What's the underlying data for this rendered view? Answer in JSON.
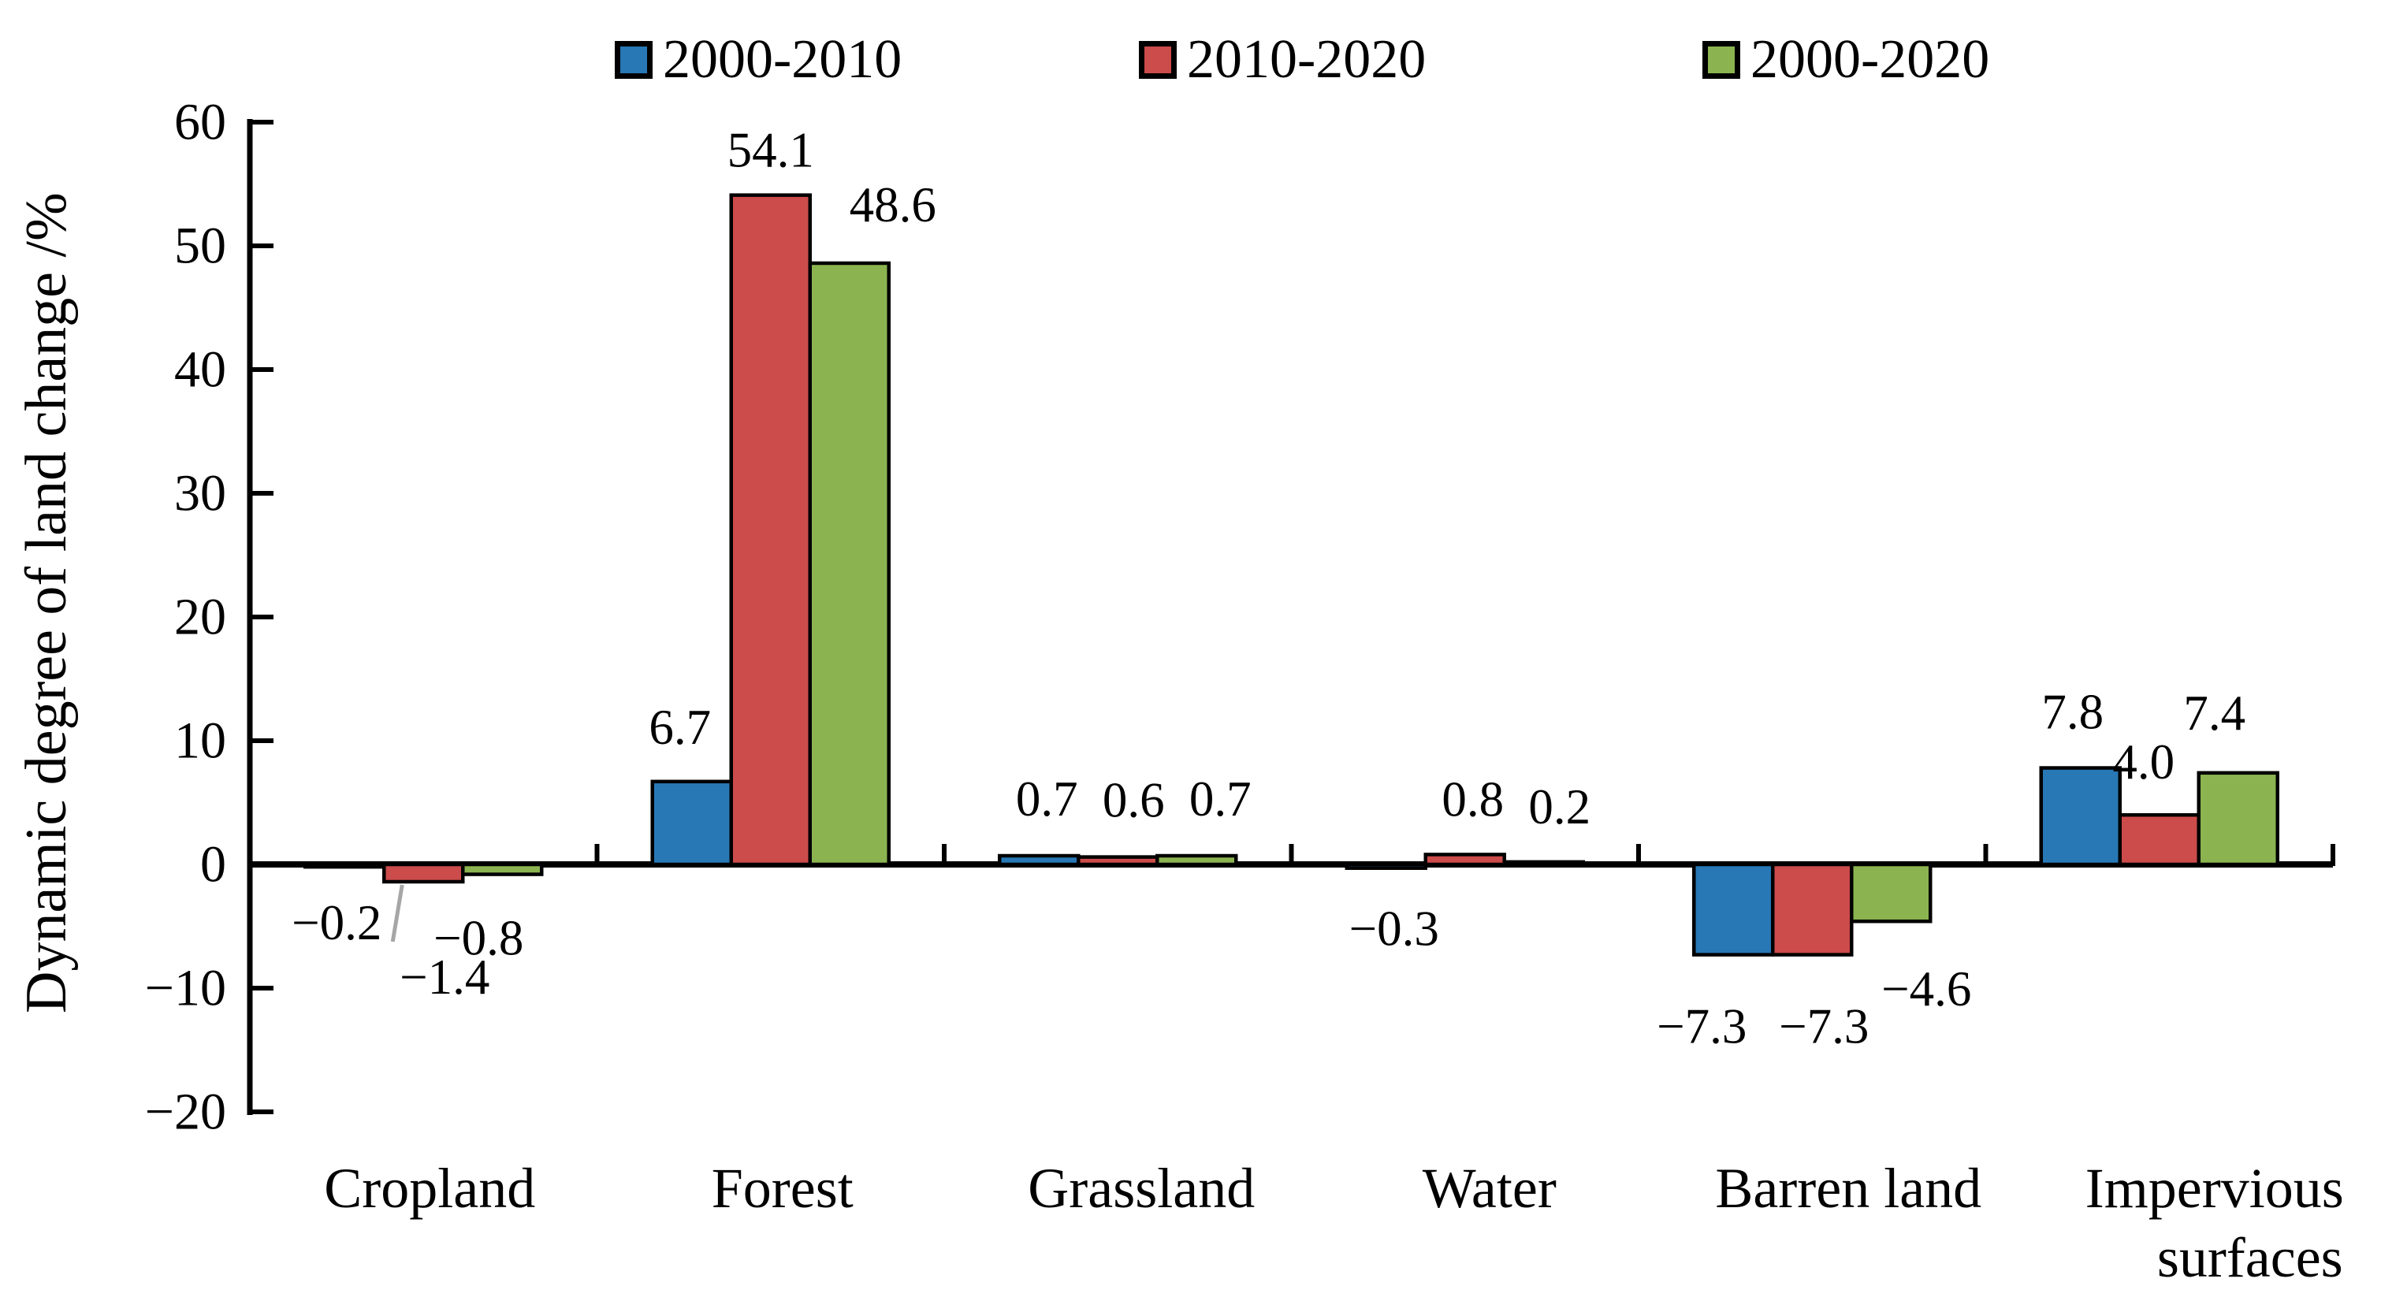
{
  "chart": {
    "ylabel": "Dynamic degree of land change /%",
    "background": "#ffffff",
    "axis_color": "#000000",
    "bar_outline_color": "#000000",
    "value_label_color": "#000000",
    "leader_line_color": "#a6a6a6"
  },
  "legend": {
    "items": [
      {
        "label": "2000-2010",
        "color": "#2878B5"
      },
      {
        "label": "2010-2020",
        "color": "#CC4B4B"
      },
      {
        "label": "2000-2020",
        "color": "#8BB450"
      }
    ]
  },
  "chart_data": {
    "type": "bar",
    "title": "",
    "xlabel": "",
    "ylabel": "Dynamic degree of land change /%",
    "ylim": [
      -20,
      60
    ],
    "ytick_step": 10,
    "grid": false,
    "legend_position": "top",
    "categories": [
      "Cropland",
      "Forest",
      "Grassland",
      "Water",
      "Barren land",
      "Impervious surfaces"
    ],
    "category_display": [
      {
        "lines": [
          "Cropland"
        ],
        "dx": 8
      },
      {
        "lines": [
          "Forest"
        ],
        "dx": 15
      },
      {
        "lines": [
          "Grassland"
        ],
        "dx": 30
      },
      {
        "lines": [
          "Water"
        ],
        "dx": 31
      },
      {
        "lines": [
          "Barren land"
        ],
        "dx": 46
      },
      {
        "lines": [
          "Impervious",
          "surfaces"
        ],
        "dx": 70
      }
    ],
    "series": [
      {
        "name": "2000-2010",
        "color": "#2878B5",
        "values": [
          -0.2,
          6.7,
          0.7,
          -0.3,
          -7.3,
          7.8
        ],
        "label_offsets": [
          {
            "dx": -10,
            "dy": 30
          },
          {
            "dx": -15,
            "dy": -20
          },
          {
            "dx": 10,
            "dy": -23
          },
          {
            "dx": 10,
            "dy": 36
          },
          {
            "dx": -40,
            "dy": 50
          },
          {
            "dx": -10,
            "dy": -22
          }
        ]
      },
      {
        "name": "2010-2020",
        "color": "#CC4B4B",
        "values": [
          -1.4,
          54.1,
          0.6,
          0.8,
          -7.3,
          4.0
        ],
        "label_offsets": [
          {
            "dx": 27,
            "dy": 80,
            "leader": true
          },
          {
            "dx": 0,
            "dy": -8
          },
          {
            "dx": 20,
            "dy": -23
          },
          {
            "dx": 10,
            "dy": -21
          },
          {
            "dx": 15,
            "dy": 50
          },
          {
            "dx": -20,
            "dy": -18
          }
        ]
      },
      {
        "name": "2000-2020",
        "color": "#8BB450",
        "values": [
          -0.8,
          48.6,
          0.7,
          0.2,
          -4.6,
          7.4
        ],
        "label_offsets": [
          {
            "dx": -30,
            "dy": 40
          },
          {
            "dx": 55,
            "dy": -25
          },
          {
            "dx": 30,
            "dy": -23
          },
          {
            "dx": 20,
            "dy": -21
          },
          {
            "dx": 45,
            "dy": 45
          },
          {
            "dx": -30,
            "dy": -27
          }
        ]
      }
    ]
  }
}
